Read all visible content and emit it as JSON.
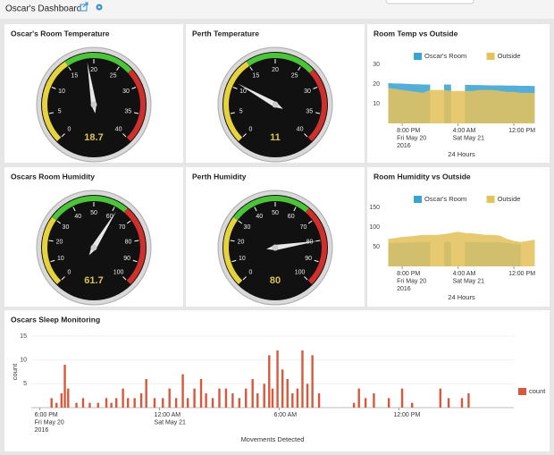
{
  "header": {
    "title": "Oscar's Dashboard"
  },
  "chart_data": [
    {
      "type": "gauge",
      "title": "Oscar's Room Temperature",
      "value": 18.7,
      "ylim": [
        0,
        40
      ],
      "yticks": [
        0,
        5,
        10,
        15,
        20,
        25,
        30,
        35,
        40
      ],
      "bands": [
        {
          "from": 0,
          "to": 15,
          "color": "#e6d23c"
        },
        {
          "from": 15,
          "to": 27,
          "color": "#4cc43a"
        },
        {
          "from": 27,
          "to": 40,
          "color": "#d0302c"
        }
      ]
    },
    {
      "type": "gauge",
      "title": "Perth Temperature",
      "value": 11,
      "ylim": [
        0,
        40
      ],
      "yticks": [
        0,
        5,
        10,
        15,
        20,
        25,
        30,
        35,
        40
      ],
      "bands": [
        {
          "from": 0,
          "to": 15,
          "color": "#e6d23c"
        },
        {
          "from": 15,
          "to": 27,
          "color": "#4cc43a"
        },
        {
          "from": 27,
          "to": 40,
          "color": "#d0302c"
        }
      ]
    },
    {
      "type": "area",
      "title": "Room Temp vs Outside",
      "x_title": "24 Hours",
      "x": [
        "2016-05-20 18:00",
        "2016-05-20 19:00",
        "2016-05-20 20:00",
        "2016-05-20 21:00",
        "2016-05-20 22:00",
        "2016-05-20 23:00",
        "2016-05-21 00:00",
        "2016-05-21 01:00",
        "2016-05-21 02:00",
        "2016-05-21 03:00",
        "2016-05-21 04:00",
        "2016-05-21 05:00",
        "2016-05-21 06:00",
        "2016-05-21 07:00",
        "2016-05-21 08:00",
        "2016-05-21 09:00",
        "2016-05-21 10:00",
        "2016-05-21 11:00",
        "2016-05-21 12:00",
        "2016-05-21 13:00",
        "2016-05-21 14:00",
        "2016-05-21 15:00"
      ],
      "xlim": [
        "2016-05-20 17:10",
        "2016-05-21 15:50"
      ],
      "xticks": [
        {
          "value": "2016-05-20 20:00",
          "label": [
            "8:00 PM",
            "Fri May 20",
            "2016"
          ]
        },
        {
          "value": "2016-05-21 04:00",
          "label": [
            "4:00 AM",
            "Sat May 21"
          ]
        },
        {
          "value": "2016-05-21 12:00",
          "label": [
            "12:00 PM"
          ]
        }
      ],
      "ylim": [
        0,
        30
      ],
      "yticks": [
        10,
        20,
        30
      ],
      "series": [
        {
          "name": "Oscar's Room",
          "color": "#3ba3d3",
          "values": [
            20.5,
            20.3,
            20.2,
            20,
            19.9,
            19.8,
            19.7,
            null,
            19.8,
            19.7,
            null,
            19.6,
            19.5,
            19.5,
            19.4,
            19.3,
            19.3,
            19.2,
            19.2,
            19.1,
            19.1,
            19
          ]
        },
        {
          "name": "Outside",
          "color": "#e4c25e",
          "values": [
            18,
            17.5,
            17,
            16.5,
            16,
            15.5,
            17,
            17,
            17,
            16.5,
            16.5,
            16.5,
            16.5,
            17,
            17,
            17,
            16.5,
            16,
            16,
            15.5,
            15.5,
            15.5
          ]
        }
      ]
    },
    {
      "type": "gauge",
      "title": "Oscars Room Humidity",
      "value": 61.7,
      "ylim": [
        0,
        100
      ],
      "yticks": [
        0,
        10,
        20,
        30,
        40,
        50,
        60,
        70,
        80,
        90,
        100
      ],
      "bands": [
        {
          "from": 0,
          "to": 30,
          "color": "#e6d23c"
        },
        {
          "from": 30,
          "to": 65,
          "color": "#4cc43a"
        },
        {
          "from": 65,
          "to": 100,
          "color": "#d0302c"
        }
      ]
    },
    {
      "type": "gauge",
      "title": "Perth Humidity",
      "value": 80,
      "ylim": [
        0,
        100
      ],
      "yticks": [
        0,
        10,
        20,
        30,
        40,
        50,
        60,
        70,
        80,
        90,
        100
      ],
      "bands": [
        {
          "from": 0,
          "to": 30,
          "color": "#e6d23c"
        },
        {
          "from": 30,
          "to": 65,
          "color": "#4cc43a"
        },
        {
          "from": 65,
          "to": 100,
          "color": "#d0302c"
        }
      ]
    },
    {
      "type": "area",
      "title": "Room Humidity vs Outside",
      "x_title": "24 Hours",
      "x": [
        "2016-05-20 18:00",
        "2016-05-20 19:00",
        "2016-05-20 20:00",
        "2016-05-20 21:00",
        "2016-05-20 22:00",
        "2016-05-20 23:00",
        "2016-05-21 00:00",
        "2016-05-21 01:00",
        "2016-05-21 02:00",
        "2016-05-21 03:00",
        "2016-05-21 04:00",
        "2016-05-21 05:00",
        "2016-05-21 06:00",
        "2016-05-21 07:00",
        "2016-05-21 08:00",
        "2016-05-21 09:00",
        "2016-05-21 10:00",
        "2016-05-21 11:00",
        "2016-05-21 12:00",
        "2016-05-21 13:00",
        "2016-05-21 14:00",
        "2016-05-21 15:00"
      ],
      "xlim": [
        "2016-05-20 17:10",
        "2016-05-21 15:50"
      ],
      "xticks": [
        {
          "value": "2016-05-20 20:00",
          "label": [
            "8:00 PM",
            "Fri May 20",
            "2016"
          ]
        },
        {
          "value": "2016-05-21 04:00",
          "label": [
            "4:00 AM",
            "Sat May 21"
          ]
        },
        {
          "value": "2016-05-21 12:00",
          "label": [
            "12:00 PM"
          ]
        }
      ],
      "ylim": [
        0,
        150
      ],
      "yticks": [
        50,
        100,
        150
      ],
      "series": [
        {
          "name": "Oscar's Room",
          "color": "#3ba3d3",
          "values": [
            58,
            60,
            60,
            61,
            61,
            62,
            62,
            null,
            62,
            62,
            null,
            63,
            62,
            62,
            61,
            62,
            61,
            60,
            58,
            56,
            null,
            60
          ]
        },
        {
          "name": "Outside",
          "color": "#e4c25e",
          "values": [
            70,
            72,
            75,
            76,
            78,
            80,
            80,
            80,
            82,
            85,
            88,
            85,
            84,
            82,
            80,
            80,
            78,
            70,
            65,
            62,
            65,
            68
          ]
        }
      ]
    },
    {
      "type": "bar",
      "title": "Oscars Sleep Monitoring",
      "x_title": "Movements Detected",
      "y_title": "count",
      "x": [
        "2016-05-20 18:35",
        "2016-05-20 18:50",
        "2016-05-20 19:05",
        "2016-05-20 19:15",
        "2016-05-20 19:25",
        "2016-05-20 19:50",
        "2016-05-20 20:10",
        "2016-05-20 20:30",
        "2016-05-20 20:55",
        "2016-05-20 21:20",
        "2016-05-20 21:35",
        "2016-05-20 21:50",
        "2016-05-20 22:10",
        "2016-05-20 22:25",
        "2016-05-20 22:45",
        "2016-05-20 23:05",
        "2016-05-20 23:20",
        "2016-05-20 23:45",
        "2016-05-21 00:10",
        "2016-05-21 00:30",
        "2016-05-21 00:50",
        "2016-05-21 01:10",
        "2016-05-21 01:25",
        "2016-05-21 01:45",
        "2016-05-21 02:05",
        "2016-05-21 02:20",
        "2016-05-21 02:40",
        "2016-05-21 03:00",
        "2016-05-21 03:20",
        "2016-05-21 03:40",
        "2016-05-21 04:00",
        "2016-05-21 04:20",
        "2016-05-21 04:40",
        "2016-05-21 04:55",
        "2016-05-21 05:15",
        "2016-05-21 05:30",
        "2016-05-21 05:40",
        "2016-05-21 05:55",
        "2016-05-21 06:10",
        "2016-05-21 06:25",
        "2016-05-21 06:40",
        "2016-05-21 06:55",
        "2016-05-21 07:10",
        "2016-05-21 07:25",
        "2016-05-21 07:40",
        "2016-05-21 08:00",
        "2016-05-21 09:45",
        "2016-05-21 10:00",
        "2016-05-21 10:20",
        "2016-05-21 10:45",
        "2016-05-21 11:30",
        "2016-05-21 12:10",
        "2016-05-21 12:40",
        "2016-05-21 14:05",
        "2016-05-21 14:30",
        "2016-05-21 15:10",
        "2016-05-21 15:30"
      ],
      "xlim": [
        "2016-05-20 17:34",
        "2016-05-21 17:46"
      ],
      "xticks": [
        {
          "value": "2016-05-20 18:00",
          "label": [
            "6:00 PM",
            "Fri May 20",
            "2016"
          ]
        },
        {
          "value": "2016-05-21 00:00",
          "label": [
            "12:00 AM",
            "Sat May 21"
          ]
        },
        {
          "value": "2016-05-21 06:00",
          "label": [
            "6:00 AM"
          ]
        },
        {
          "value": "2016-05-21 12:00",
          "label": [
            "12:00 PM"
          ]
        }
      ],
      "ylim": [
        0,
        15
      ],
      "yticks": [
        5,
        10,
        15
      ],
      "series": [
        {
          "name": "count",
          "color": "#d9583b",
          "values": [
            2,
            1,
            3,
            9,
            4,
            1,
            2,
            1,
            1,
            2,
            1,
            2,
            4,
            2,
            2,
            3,
            6,
            2,
            2,
            4,
            2,
            7,
            2,
            4,
            6,
            3,
            2,
            4,
            4,
            3,
            2,
            4,
            6,
            3,
            5,
            11,
            4,
            12,
            8,
            6,
            3,
            4,
            12,
            5,
            11,
            3,
            1,
            4,
            2,
            3,
            2,
            4,
            1,
            4,
            2,
            2,
            3
          ]
        }
      ]
    }
  ]
}
